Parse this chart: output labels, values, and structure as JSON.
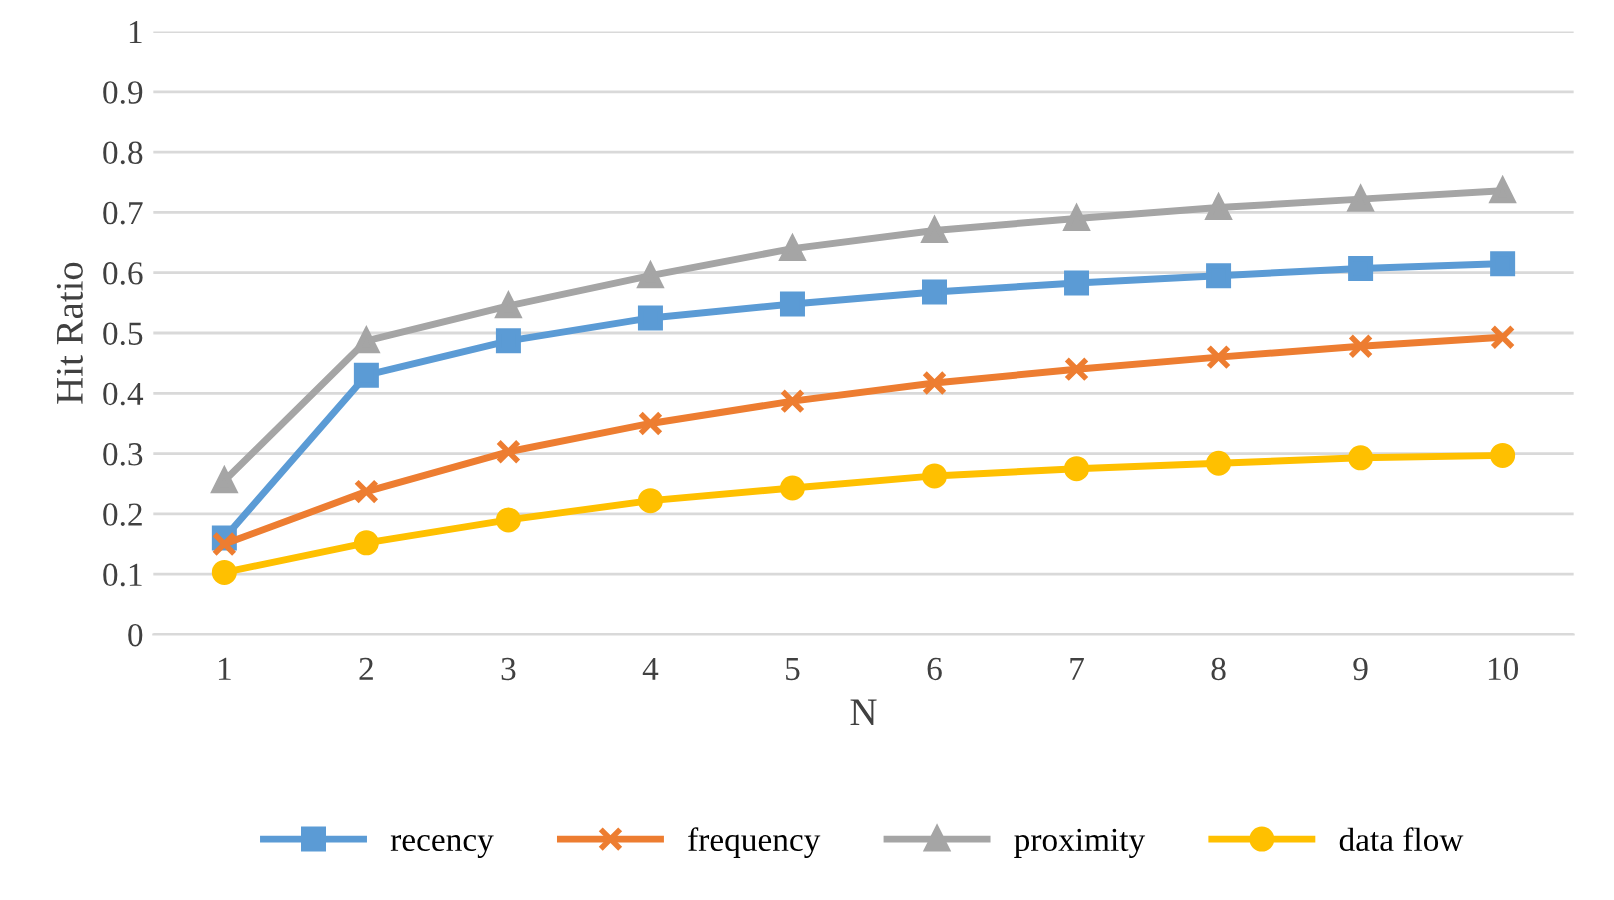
{
  "chart_data": {
    "type": "line",
    "xlabel": "N",
    "ylabel": "Hit Ratio",
    "categories": [
      "1",
      "2",
      "3",
      "4",
      "5",
      "6",
      "7",
      "8",
      "9",
      "10"
    ],
    "ylim": [
      0,
      1
    ],
    "yticks": [
      0,
      0.1,
      0.2,
      0.3,
      0.4,
      0.5,
      0.6,
      0.7,
      0.8,
      0.9,
      1
    ],
    "grid": "y",
    "legend": "bottom",
    "line_style": "solid",
    "series": [
      {
        "name": "recency",
        "color": "#5b9bd5",
        "marker": "square",
        "values": [
          0.16,
          0.43,
          0.487,
          0.525,
          0.548,
          0.568,
          0.583,
          0.595,
          0.607,
          0.615
        ]
      },
      {
        "name": "frequency",
        "color": "#ed7d31",
        "marker": "cross",
        "values": [
          0.15,
          0.237,
          0.303,
          0.35,
          0.387,
          0.417,
          0.44,
          0.46,
          0.478,
          0.493
        ]
      },
      {
        "name": "proximity",
        "color": "#a5a5a5",
        "marker": "triangle",
        "values": [
          0.255,
          0.487,
          0.545,
          0.595,
          0.64,
          0.67,
          0.69,
          0.708,
          0.722,
          0.736
        ]
      },
      {
        "name": "data flow",
        "color": "#ffc000",
        "marker": "circle",
        "values": [
          0.103,
          0.152,
          0.19,
          0.222,
          0.243,
          0.263,
          0.275,
          0.284,
          0.293,
          0.297
        ]
      }
    ]
  }
}
